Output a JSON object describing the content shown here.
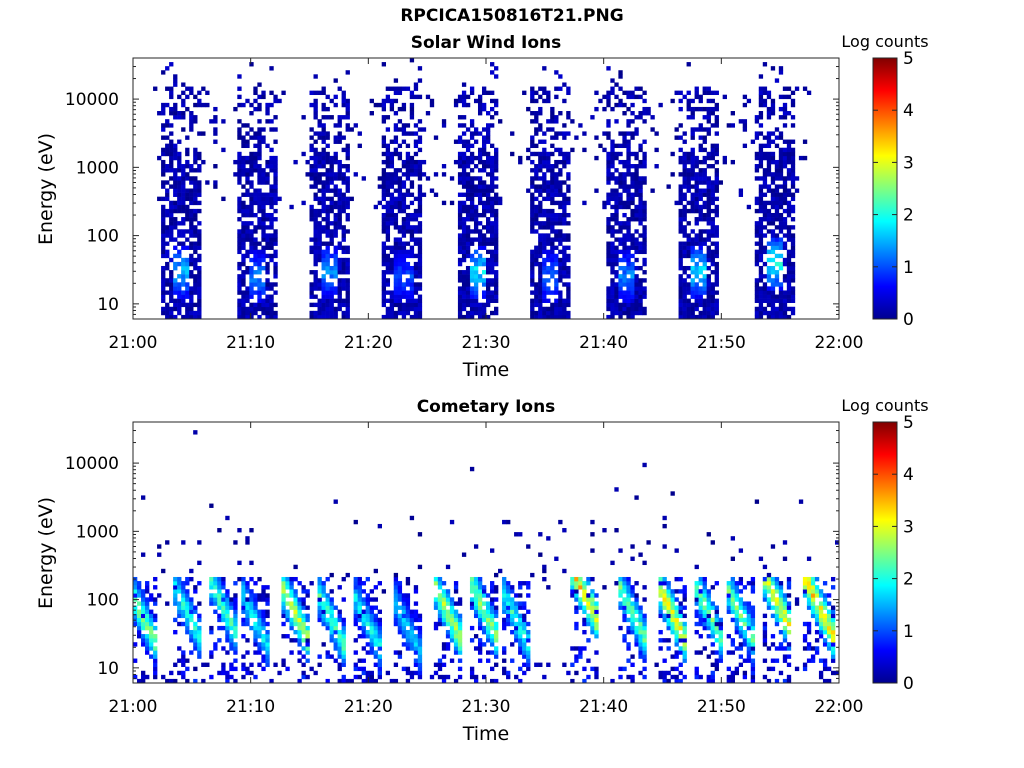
{
  "figure_title": "RPCICA150816T21.PNG",
  "chart_data": [
    {
      "type": "heatmap",
      "title": "Solar Wind Ions",
      "xlabel": "Time",
      "ylabel": "Energy (eV)",
      "x_ticks": [
        "21:00",
        "21:10",
        "21:20",
        "21:30",
        "21:40",
        "21:50",
        "22:00"
      ],
      "x_range": [
        "21:00",
        "22:00"
      ],
      "y_scale": "log",
      "y_ticks": [
        10,
        100,
        1000,
        10000
      ],
      "y_range": [
        6,
        40000
      ],
      "colorbar": {
        "label": "Log counts",
        "ticks": [
          0,
          1,
          2,
          3,
          4,
          5
        ],
        "range": [
          0,
          5
        ],
        "colormap": "jet"
      },
      "bursts": [
        {
          "center_min": 4.2,
          "peak_energy_eV": 30,
          "peak_log_counts": 1.8
        },
        {
          "center_min": 10.5,
          "peak_energy_eV": 25,
          "peak_log_counts": 1.5
        },
        {
          "center_min": 16.8,
          "peak_energy_eV": 30,
          "peak_log_counts": 1.6
        },
        {
          "center_min": 23.0,
          "peak_energy_eV": 25,
          "peak_log_counts": 1.2
        },
        {
          "center_min": 29.3,
          "peak_energy_eV": 30,
          "peak_log_counts": 2.1
        },
        {
          "center_min": 35.6,
          "peak_energy_eV": 25,
          "peak_log_counts": 1.4
        },
        {
          "center_min": 41.9,
          "peak_energy_eV": 25,
          "peak_log_counts": 1.5
        },
        {
          "center_min": 48.2,
          "peak_energy_eV": 30,
          "peak_log_counts": 2.0
        },
        {
          "center_min": 54.5,
          "peak_energy_eV": 40,
          "peak_log_counts": 2.3
        }
      ]
    },
    {
      "type": "heatmap",
      "title": "Cometary Ions",
      "xlabel": "Time",
      "ylabel": "Energy (eV)",
      "x_ticks": [
        "21:00",
        "21:10",
        "21:20",
        "21:30",
        "21:40",
        "21:50",
        "22:00"
      ],
      "x_range": [
        "21:00",
        "22:00"
      ],
      "y_scale": "log",
      "y_ticks": [
        10,
        100,
        1000,
        10000
      ],
      "y_range": [
        6,
        40000
      ],
      "colorbar": {
        "label": "Log counts",
        "ticks": [
          0,
          1,
          2,
          3,
          4,
          5
        ],
        "range": [
          0,
          5
        ],
        "colormap": "jet"
      },
      "bursts": [
        {
          "center_min": 0.7,
          "peak_energy_eV": 35,
          "peak_log_counts": 3.0
        },
        {
          "center_min": 4.5,
          "peak_energy_eV": 40,
          "peak_log_counts": 2.4
        },
        {
          "center_min": 7.8,
          "peak_energy_eV": 40,
          "peak_log_counts": 2.6
        },
        {
          "center_min": 10.5,
          "peak_energy_eV": 25,
          "peak_log_counts": 2.2
        },
        {
          "center_min": 13.8,
          "peak_energy_eV": 35,
          "peak_log_counts": 3.3
        },
        {
          "center_min": 16.8,
          "peak_energy_eV": 30,
          "peak_log_counts": 2.6
        },
        {
          "center_min": 20.0,
          "peak_energy_eV": 25,
          "peak_log_counts": 2.2
        },
        {
          "center_min": 23.2,
          "peak_energy_eV": 25,
          "peak_log_counts": 2.0
        },
        {
          "center_min": 26.8,
          "peak_energy_eV": 35,
          "peak_log_counts": 3.2
        },
        {
          "center_min": 29.8,
          "peak_energy_eV": 40,
          "peak_log_counts": 3.0
        },
        {
          "center_min": 32.5,
          "peak_energy_eV": 30,
          "peak_log_counts": 2.4
        },
        {
          "center_min": 38.5,
          "peak_energy_eV": 60,
          "peak_log_counts": 3.8
        },
        {
          "center_min": 42.5,
          "peak_energy_eV": 35,
          "peak_log_counts": 2.8
        },
        {
          "center_min": 46.0,
          "peak_energy_eV": 30,
          "peak_log_counts": 3.6
        },
        {
          "center_min": 48.8,
          "peak_energy_eV": 40,
          "peak_log_counts": 2.8
        },
        {
          "center_min": 51.8,
          "peak_energy_eV": 30,
          "peak_log_counts": 2.8
        },
        {
          "center_min": 54.8,
          "peak_energy_eV": 50,
          "peak_log_counts": 3.6
        },
        {
          "center_min": 58.3,
          "peak_energy_eV": 45,
          "peak_log_counts": 3.8
        }
      ]
    }
  ]
}
